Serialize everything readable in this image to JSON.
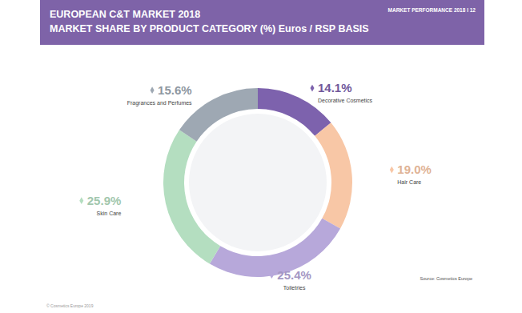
{
  "chart_data": {
    "type": "pie",
    "title": "EUROPEAN C&T MARKET 2018",
    "subtitle": "MARKET SHARE BY PRODUCT CATEGORY (%) Euros / RSP BASIS",
    "categories": [
      "Decorative Cosmetics",
      "Hair Care",
      "Toiletries",
      "Skin Care",
      "Fragrances and Perfumes"
    ],
    "values": [
      14.1,
      19.0,
      25.4,
      25.9,
      15.6
    ],
    "value_labels": [
      "14.1%",
      "19.0%",
      "25.4%",
      "25.9%",
      "15.6%"
    ],
    "colors": [
      "#7d62ad",
      "#f8c7a6",
      "#b7a8da",
      "#b4dec0",
      "#9ea8b3"
    ],
    "data_labels": true,
    "annotations": [
      "MARKET PERFORMANCE 2018 I 12",
      "Source: Cosmetics Europe",
      "© Cosmetics Europe 2019"
    ]
  }
}
